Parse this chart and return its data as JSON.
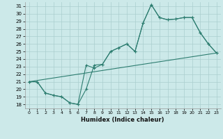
{
  "bg_color": "#cce9e9",
  "line_color": "#2d7d70",
  "grid_color": "#aacece",
  "xlabel": "Humidex (Indice chaleur)",
  "xlim": [
    -0.5,
    23.5
  ],
  "ylim": [
    17.5,
    31.5
  ],
  "xticks": [
    0,
    1,
    2,
    3,
    4,
    5,
    6,
    7,
    8,
    9,
    10,
    11,
    12,
    13,
    14,
    15,
    16,
    17,
    18,
    19,
    20,
    21,
    22,
    23
  ],
  "yticks": [
    18,
    19,
    20,
    21,
    22,
    23,
    24,
    25,
    26,
    27,
    28,
    29,
    30,
    31
  ],
  "line1_x": [
    0,
    1,
    2,
    3,
    4,
    5,
    6,
    7,
    8,
    9,
    10,
    11,
    12,
    13,
    14,
    15,
    16,
    17,
    18,
    19,
    20,
    21,
    22,
    23
  ],
  "line1_y": [
    21,
    21,
    19.5,
    19.2,
    19.0,
    18.2,
    18.0,
    20.0,
    23.2,
    23.3,
    25.0,
    25.5,
    26.0,
    25.0,
    28.8,
    31.2,
    29.5,
    29.2,
    29.3,
    29.5,
    29.5,
    27.5,
    26.0,
    24.8
  ],
  "line2_x": [
    0,
    1,
    2,
    3,
    4,
    5,
    6,
    7,
    8,
    9,
    10,
    11,
    12,
    13,
    14,
    15,
    16,
    17,
    18,
    19,
    20,
    21,
    22,
    23
  ],
  "line2_y": [
    21,
    21,
    19.5,
    19.2,
    19.0,
    18.2,
    18.0,
    23.2,
    22.8,
    23.3,
    25.0,
    25.5,
    26.0,
    25.0,
    28.8,
    31.2,
    29.5,
    29.2,
    29.3,
    29.5,
    29.5,
    27.5,
    26.0,
    24.8
  ],
  "line3_x": [
    0,
    23
  ],
  "line3_y": [
    21.0,
    24.8
  ]
}
